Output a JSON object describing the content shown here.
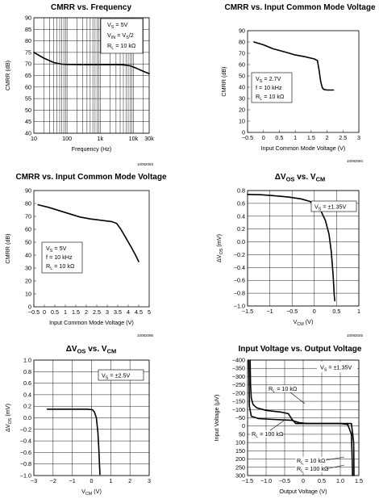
{
  "chart_data": [
    {
      "type": "line",
      "title": "CMRR vs. Frequency",
      "xlabel": "Frequency (Hz)",
      "ylabel": "CMRR (dB)",
      "xscale": "log",
      "xlim": [
        10,
        30000
      ],
      "ylim": [
        40,
        90
      ],
      "xticks": [
        10,
        100,
        1000,
        10000,
        30000
      ],
      "xtick_labels": [
        "10",
        "100",
        "1k",
        "10k",
        "30k"
      ],
      "yticks": [
        40,
        45,
        50,
        55,
        60,
        65,
        70,
        75,
        80,
        85,
        90
      ],
      "grid": true,
      "annotations": [
        "VS = 5V",
        "VIN = VS/2",
        "RL = 10 kΩ"
      ],
      "code": "10092093",
      "series": [
        {
          "x": [
            10,
            20,
            40,
            70,
            100,
            300,
            1000,
            3000,
            5000,
            8000,
            12000,
            20000,
            30000
          ],
          "y": [
            75,
            72.5,
            70.6,
            69.9,
            69.8,
            69.7,
            69.7,
            69.7,
            69.6,
            69.2,
            68.2,
            66.8,
            65.8
          ]
        }
      ]
    },
    {
      "type": "line",
      "title": "CMRR vs. Input Common Mode Voltage",
      "xlabel": "Input Common Mode Voltage (V)",
      "ylabel": "CMRR (dB)",
      "xlim": [
        -0.5,
        3.0
      ],
      "ylim": [
        0,
        90
      ],
      "xticks": [
        -0.5,
        0,
        0.5,
        1,
        1.5,
        2,
        2.5,
        3
      ],
      "xtick_labels": [
        "−0.5",
        "0",
        "0.5",
        "1",
        "1.5",
        "2",
        "2.5",
        "3"
      ],
      "yticks": [
        0,
        10,
        20,
        30,
        40,
        50,
        60,
        70,
        80,
        90
      ],
      "grid": false,
      "annotations": [
        "VS = 2.7V",
        "f = 10 kHz",
        "RL = 10 kΩ"
      ],
      "code": "10092094",
      "series": [
        {
          "x": [
            -0.3,
            0,
            0.3,
            0.7,
            1.0,
            1.3,
            1.6,
            1.7,
            1.75,
            1.8,
            1.85,
            1.9,
            2.0,
            2.2
          ],
          "y": [
            80,
            77.5,
            74,
            71,
            68.5,
            67,
            65,
            63.5,
            55,
            45,
            39.5,
            38,
            37.5,
            37.5
          ]
        }
      ]
    },
    {
      "type": "line",
      "title": "CMRR vs. Input Common Mode Voltage",
      "xlabel": "Input Common Mode Voltage (V)",
      "ylabel": "CMRR (dB)",
      "xlim": [
        -0.5,
        5.0
      ],
      "ylim": [
        0,
        90
      ],
      "xticks": [
        -0.5,
        0,
        0.5,
        1,
        1.5,
        2,
        2.5,
        3,
        3.5,
        4,
        4.5,
        5
      ],
      "xtick_labels": [
        "−0.5",
        "0",
        "0.5",
        "1",
        "1.5",
        "2",
        "2.5",
        "3",
        "3.5",
        "4",
        "4.5",
        "5"
      ],
      "yticks": [
        0,
        10,
        20,
        30,
        40,
        50,
        60,
        70,
        80,
        90
      ],
      "grid": false,
      "annotations": [
        "VS = 5V",
        "f = 10 kHz",
        "RL = 10 kΩ"
      ],
      "code": "10092095",
      "series": [
        {
          "x": [
            -0.3,
            0.2,
            0.7,
            1.2,
            1.7,
            2.2,
            2.7,
            3.2,
            3.45,
            3.65,
            3.9,
            4.15,
            4.35,
            4.5
          ],
          "y": [
            79,
            77,
            74.5,
            72,
            69.5,
            68,
            67,
            66,
            64.5,
            60,
            53,
            46,
            40,
            35
          ]
        }
      ]
    },
    {
      "type": "line",
      "title": "ΔVOS vs. VCM",
      "xlabel": "VCM (V)",
      "ylabel": "ΔVOS (mV)",
      "xlim": [
        -1.5,
        1.0
      ],
      "ylim": [
        -1.0,
        0.8
      ],
      "xticks": [
        -1.5,
        -1,
        -0.5,
        0,
        0.5,
        1
      ],
      "xtick_labels": [
        "−1.5",
        "−1",
        "−0.5",
        "0",
        "0.5",
        "1"
      ],
      "yticks": [
        -1.0,
        -0.8,
        -0.6,
        -0.4,
        -0.2,
        0,
        0.2,
        0.4,
        0.6,
        0.8
      ],
      "ytick_labels": [
        "−1.0",
        "−0.8",
        "−0.6",
        "−0.4",
        "−0.2",
        "0.0",
        "0.2",
        "0.4",
        "0.6",
        "0.8"
      ],
      "grid": true,
      "annotations": [
        "VS = ±1.35V"
      ],
      "code": "10092045",
      "series": [
        {
          "x": [
            -1.5,
            -1.2,
            -0.9,
            -0.6,
            -0.3,
            -0.1,
            0.05,
            0.15,
            0.25,
            0.33,
            0.38,
            0.42,
            0.45,
            0.46
          ],
          "y": [
            0.74,
            0.735,
            0.72,
            0.7,
            0.67,
            0.63,
            0.57,
            0.48,
            0.33,
            0.12,
            -0.15,
            -0.5,
            -0.85,
            -0.92
          ]
        }
      ]
    },
    {
      "type": "line",
      "title": "ΔVOS vs. VCM",
      "xlabel": "VCM (V)",
      "ylabel": "ΔVOS (mV)",
      "xlim": [
        -3,
        3
      ],
      "ylim": [
        -1.0,
        1.0
      ],
      "xticks": [
        -3,
        -2,
        -1,
        0,
        1,
        2,
        3
      ],
      "xtick_labels": [
        "−3",
        "−2",
        "−1",
        "0",
        "1",
        "2",
        "3"
      ],
      "yticks": [
        -1.0,
        -0.8,
        -0.6,
        -0.4,
        -0.2,
        0,
        0.2,
        0.4,
        0.6,
        0.8,
        1.0
      ],
      "ytick_labels": [
        "−1.0",
        "−0.8",
        "−0.6",
        "−0.4",
        "−0.2",
        "0.0",
        "0.2",
        "0.4",
        "0.6",
        "0.8",
        "1.0"
      ],
      "grid": true,
      "annotations": [
        "VS = ±2.5V"
      ],
      "series": [
        {
          "x": [
            -2.3,
            -1.5,
            -0.8,
            -0.2,
            0.05,
            0.15,
            0.25,
            0.33,
            0.38,
            0.42,
            0.44
          ],
          "y": [
            0.15,
            0.15,
            0.15,
            0.15,
            0.14,
            0.1,
            0.0,
            -0.25,
            -0.55,
            -0.85,
            -0.98
          ]
        }
      ]
    },
    {
      "type": "line",
      "title": "Input Voltage vs. Output Voltage",
      "xlabel": "Output Voltage (V)",
      "ylabel": "Input Voltage (μV)",
      "xlim": [
        -1.5,
        1.5
      ],
      "ylim": [
        -400,
        300
      ],
      "yinverted": true,
      "xticks": [
        -1.5,
        -1,
        -0.5,
        0,
        0.5,
        1,
        1.5
      ],
      "xtick_labels": [
        "−1.5",
        "−1.0",
        "−0.5",
        "0",
        "0.5",
        "1.0",
        "1.5"
      ],
      "yticks": [
        -400,
        -350,
        -300,
        -250,
        -200,
        -150,
        -100,
        -50,
        0,
        50,
        100,
        150,
        200,
        250,
        300
      ],
      "ytick_labels": [
        "−400",
        "−350",
        "−300",
        "−250",
        "−200",
        "−150",
        "−100",
        "−50",
        "0",
        "50",
        "100",
        "150",
        "200",
        "250",
        "300"
      ],
      "grid": true,
      "annotations": [
        "VS = ±1.35V",
        "RL = 10 kΩ",
        "RL = 100 kΩ",
        "RL = 10 kΩ",
        "RL = 100 kΩ"
      ],
      "series": [
        {
          "name": "RL = 10 kΩ",
          "x": [
            -1.43,
            -1.42,
            -1.4,
            -1.35,
            -1.25,
            -1.0,
            -0.6,
            -0.4,
            -0.3,
            -0.2,
            0.0,
            0.5,
            1.0,
            1.2,
            1.3,
            1.32,
            1.33
          ],
          "y": [
            -400,
            -250,
            -170,
            -130,
            -110,
            -95,
            -85,
            -75,
            -40,
            -15,
            -15,
            -15,
            -15,
            -10,
            50,
            200,
            300
          ]
        },
        {
          "name": "RL = 100 kΩ",
          "x": [
            -1.47,
            -1.46,
            -1.45,
            -1.4,
            -1.2,
            -0.8,
            -0.3,
            -0.1,
            0.1,
            0.6,
            1.1,
            1.3,
            1.36,
            1.37
          ],
          "y": [
            -400,
            -300,
            -120,
            -60,
            -45,
            -40,
            -35,
            -20,
            -15,
            -15,
            -15,
            -15,
            100,
            300
          ]
        }
      ]
    }
  ]
}
